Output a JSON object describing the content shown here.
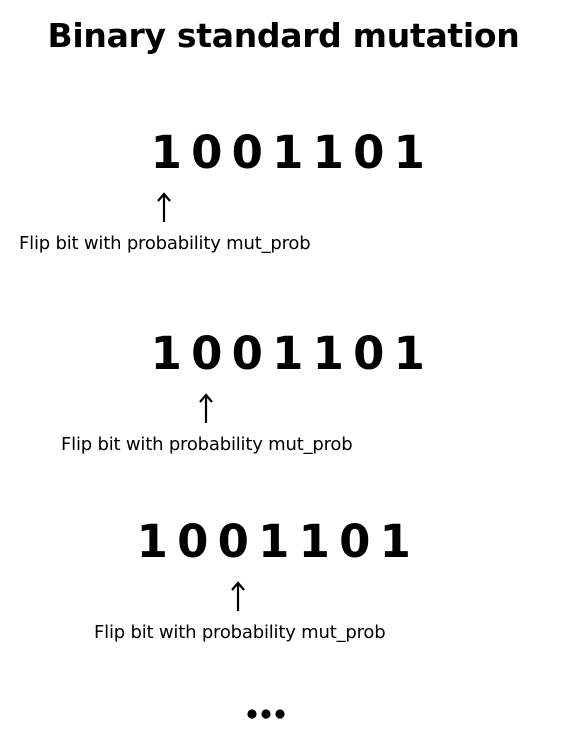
{
  "title": "Binary standard mutation",
  "steps": [
    {
      "bits": [
        "1",
        "0",
        "0",
        "1",
        "1",
        "0",
        "1"
      ],
      "pointed_bit": 1,
      "caption": "Flip bit with probability mut_prob"
    },
    {
      "bits": [
        "1",
        "0",
        "0",
        "1",
        "1",
        "0",
        "1"
      ],
      "pointed_bit": 2,
      "caption": "Flip bit with probability mut_prob"
    },
    {
      "bits": [
        "1",
        "0",
        "0",
        "1",
        "1",
        "0",
        "1"
      ],
      "pointed_bit": 3,
      "caption": "Flip bit with probability mut_prob"
    }
  ],
  "continuation_icon": "ellipsis-icon",
  "colors": {
    "text": "#000000",
    "background": "#ffffff"
  }
}
